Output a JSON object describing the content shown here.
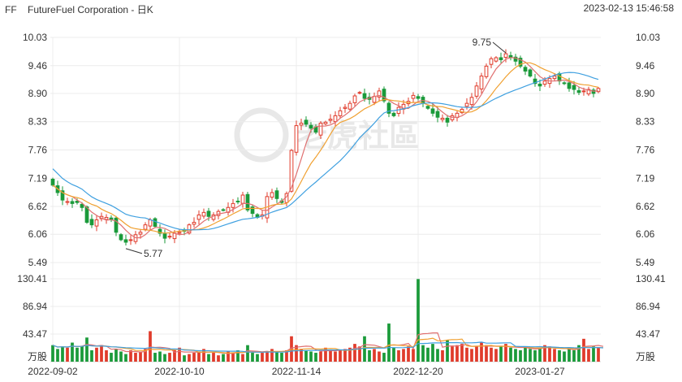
{
  "header": {
    "ticker": "FF",
    "name": "FutureFuel Corporation - 日K",
    "timestamp": "2023-02-13 15:46:58"
  },
  "watermark": "老虎社區",
  "colors": {
    "up": "#e03b2b",
    "down": "#1a9a3a",
    "ma5": "#e07070",
    "ma10": "#f0a030",
    "ma20": "#3fa0e0",
    "grid": "#ececec"
  },
  "chart_data": {
    "type": "candlestick",
    "price_axis": {
      "ticks": [
        "10.03",
        "9.46",
        "8.90",
        "8.33",
        "7.76",
        "7.19",
        "6.62",
        "6.06",
        "5.49"
      ],
      "ylim": [
        5.49,
        10.03
      ]
    },
    "volume_axis": {
      "ticks": [
        "130.41",
        "86.94",
        "43.47"
      ],
      "unit": "万股",
      "ylim": [
        0,
        130.41
      ]
    },
    "x_labels": [
      {
        "label": "2022-09-02",
        "index": 0
      },
      {
        "label": "2022-10-10",
        "index": 26
      },
      {
        "label": "2022-11-14",
        "index": 50
      },
      {
        "label": "2022-12-20",
        "index": 75
      },
      {
        "label": "2023-01-27",
        "index": 100
      }
    ],
    "annotations": [
      {
        "label": "9.75",
        "index": 93,
        "value": 9.75
      },
      {
        "label": "5.77",
        "index": 15,
        "value": 5.77
      }
    ],
    "closes": [
      7.05,
      6.9,
      6.75,
      6.72,
      6.68,
      6.7,
      6.6,
      6.3,
      6.25,
      6.35,
      6.42,
      6.4,
      6.35,
      6.1,
      5.95,
      5.9,
      5.95,
      6.05,
      6.1,
      6.25,
      6.35,
      6.22,
      6.08,
      5.98,
      6.02,
      6.08,
      6.1,
      6.12,
      6.25,
      6.3,
      6.45,
      6.5,
      6.42,
      6.45,
      6.52,
      6.55,
      6.6,
      6.68,
      6.72,
      6.85,
      6.55,
      6.48,
      6.4,
      6.45,
      6.82,
      6.9,
      6.78,
      6.7,
      6.88,
      7.75,
      8.25,
      8.3,
      8.28,
      8.2,
      8.12,
      8.3,
      8.32,
      8.38,
      8.45,
      8.55,
      8.62,
      8.7,
      8.85,
      8.92,
      8.8,
      8.78,
      8.84,
      8.95,
      8.75,
      8.5,
      8.45,
      8.62,
      8.68,
      8.74,
      8.86,
      8.8,
      8.7,
      8.6,
      8.5,
      8.42,
      8.4,
      8.32,
      8.45,
      8.5,
      8.58,
      8.7,
      8.82,
      9.05,
      9.25,
      9.45,
      9.6,
      9.62,
      9.58,
      9.7,
      9.62,
      9.55,
      9.45,
      9.35,
      9.25,
      9.1,
      9.05,
      9.15,
      9.2,
      9.25,
      9.15,
      9.1,
      9.0,
      8.98,
      8.92,
      8.95,
      8.98,
      8.9,
      9.0
    ],
    "volumes": [
      26,
      20,
      24,
      22,
      30,
      22,
      24,
      38,
      18,
      22,
      26,
      18,
      14,
      20,
      16,
      12,
      18,
      14,
      16,
      20,
      48,
      14,
      16,
      12,
      14,
      18,
      22,
      10,
      12,
      14,
      16,
      20,
      12,
      14,
      10,
      12,
      16,
      14,
      18,
      12,
      26,
      14,
      12,
      14,
      16,
      20,
      16,
      14,
      18,
      40,
      26,
      20,
      18,
      16,
      14,
      16,
      22,
      18,
      16,
      18,
      20,
      22,
      28,
      24,
      40,
      18,
      20,
      16,
      14,
      60,
      22,
      18,
      20,
      24,
      20,
      130,
      26,
      22,
      28,
      20,
      18,
      34,
      24,
      26,
      28,
      22,
      20,
      24,
      30,
      26,
      22,
      20,
      24,
      28,
      22,
      20,
      18,
      24,
      20,
      18,
      22,
      26,
      24,
      20,
      18,
      16,
      22,
      18,
      26,
      36,
      20,
      24,
      22,
      18
    ],
    "series": [
      {
        "name": "MA5",
        "color": "#e07070"
      },
      {
        "name": "MA10",
        "color": "#f0a030"
      },
      {
        "name": "MA20",
        "color": "#3fa0e0"
      }
    ]
  }
}
